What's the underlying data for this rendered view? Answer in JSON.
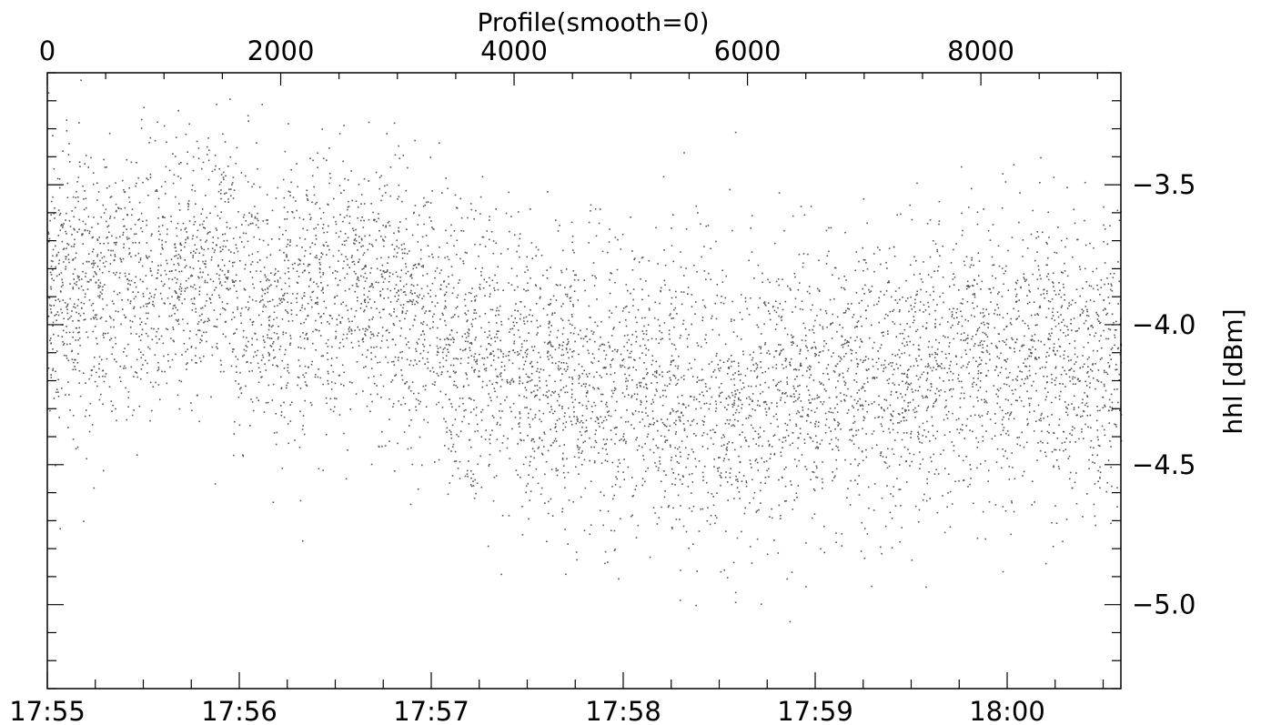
{
  "chart_data": {
    "type": "scatter",
    "title": "Profile(smooth=0)",
    "ylabel": "hhl [dBm]",
    "xlabel": "",
    "x_top": {
      "label": "Profile(smooth=0)",
      "ticks": [
        0,
        2000,
        4000,
        6000,
        8000
      ],
      "tick_labels": [
        "0",
        "2000",
        "4000",
        "6000",
        "8000"
      ],
      "range": [
        0,
        9200
      ]
    },
    "x_bottom": {
      "ticks": [
        "17:55",
        "17:56",
        "17:57",
        "17:58",
        "17:59",
        "18:00"
      ],
      "tick_labels": [
        "17:55",
        "17:56",
        "17:57",
        "17:58",
        "17:59",
        "18:00"
      ],
      "range_minutes_label": [
        "17:55",
        "18:00:33"
      ]
    },
    "y": {
      "ticks": [
        -3.5,
        -4.0,
        -4.5,
        -5.0
      ],
      "tick_labels": [
        "-3.5",
        "-4.0",
        "-4.5",
        "-5.0"
      ],
      "range": [
        -5.3,
        -3.1
      ]
    },
    "grid": false,
    "series_trend": {
      "profile_index": [
        0,
        500,
        1000,
        1500,
        2000,
        2500,
        3000,
        3500,
        4000,
        4500,
        5000,
        5500,
        6000,
        6500,
        7000,
        7500,
        8000,
        8500,
        9000,
        9200
      ],
      "mean_dBm": [
        -3.85,
        -3.88,
        -3.82,
        -3.78,
        -3.95,
        -3.88,
        -3.92,
        -4.1,
        -4.15,
        -4.2,
        -4.22,
        -4.28,
        -4.25,
        -4.22,
        -4.2,
        -4.18,
        -4.1,
        -4.12,
        -4.15,
        -4.12
      ],
      "spread_dBm": [
        0.25,
        0.25,
        0.25,
        0.25,
        0.25,
        0.25,
        0.25,
        0.25,
        0.25,
        0.25,
        0.25,
        0.25,
        0.25,
        0.25,
        0.25,
        0.25,
        0.25,
        0.25,
        0.25,
        0.25
      ]
    },
    "n_points": 6500
  }
}
